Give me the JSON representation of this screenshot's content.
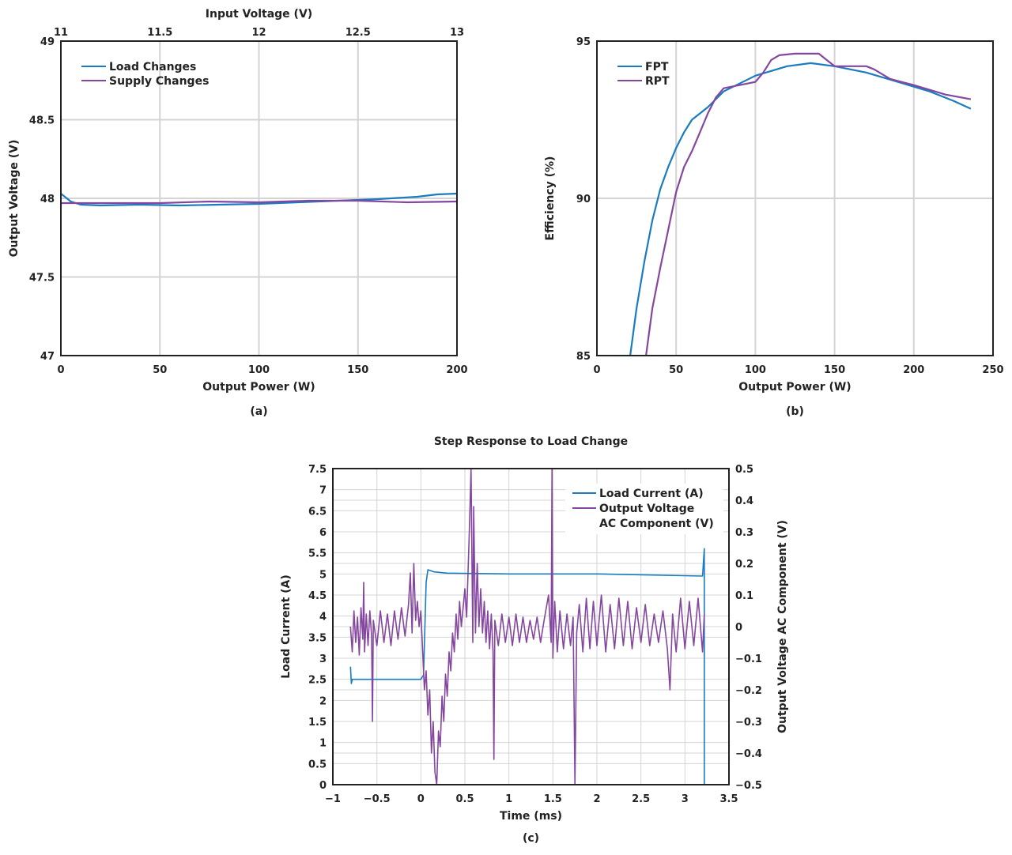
{
  "colors": {
    "blue": "#1a7cc0",
    "purple": "#8546a0",
    "grid": "#d4d4d4",
    "axis": "#222222"
  },
  "chart_data": [
    {
      "id": "a",
      "type": "line",
      "caption": "(a)",
      "xlabel": "Output Power (W)",
      "x2label": "Input Voltage (V)",
      "ylabel": "Output Voltage (V)",
      "xlim": [
        0,
        200
      ],
      "x2lim": [
        11,
        13
      ],
      "ylim": [
        47,
        49
      ],
      "xticks": [
        0,
        50,
        100,
        150,
        200
      ],
      "x2ticks": [
        11,
        11.5,
        12,
        12.5,
        13
      ],
      "yticks": [
        47,
        47.5,
        48,
        48.5,
        49
      ],
      "grid": true,
      "legend": "top-left",
      "series": [
        {
          "name": "Load Changes",
          "color": "blue",
          "axis": "x",
          "x": [
            0,
            5,
            10,
            20,
            40,
            60,
            80,
            100,
            120,
            140,
            160,
            180,
            190,
            200
          ],
          "y": [
            48.03,
            47.98,
            47.96,
            47.955,
            47.96,
            47.955,
            47.96,
            47.965,
            47.975,
            47.985,
            47.995,
            48.01,
            48.025,
            48.03
          ]
        },
        {
          "name": "Supply Changes",
          "color": "purple",
          "axis": "x2",
          "x": [
            11,
            11.5,
            11.75,
            12,
            12.25,
            12.5,
            12.75,
            13
          ],
          "y": [
            47.97,
            47.97,
            47.98,
            47.975,
            47.985,
            47.985,
            47.975,
            47.98
          ]
        }
      ]
    },
    {
      "id": "b",
      "type": "line",
      "caption": "(b)",
      "xlabel": "Output Power (W)",
      "ylabel": "Efficiency (%)",
      "xlim": [
        0,
        250
      ],
      "ylim": [
        85,
        95
      ],
      "xticks": [
        0,
        50,
        100,
        150,
        200,
        250
      ],
      "yticks": [
        85,
        90,
        95
      ],
      "grid": true,
      "legend": "top-left",
      "series": [
        {
          "name": "FPT",
          "color": "blue",
          "x": [
            21,
            25,
            30,
            35,
            40,
            45,
            50,
            55,
            60,
            70,
            80,
            100,
            120,
            135,
            150,
            170,
            190,
            210,
            225,
            236
          ],
          "y": [
            85,
            86.5,
            88,
            89.3,
            90.3,
            91.0,
            91.6,
            92.1,
            92.5,
            92.9,
            93.4,
            93.9,
            94.2,
            94.3,
            94.2,
            94.0,
            93.7,
            93.4,
            93.1,
            92.85
          ]
        },
        {
          "name": "RPT",
          "color": "purple",
          "x": [
            31,
            35,
            40,
            45,
            50,
            55,
            60,
            65,
            70,
            75,
            80,
            90,
            100,
            105,
            110,
            115,
            125,
            140,
            145,
            150,
            160,
            170,
            175,
            185,
            200,
            220,
            236
          ],
          "y": [
            85,
            86.5,
            87.8,
            89,
            90.2,
            91,
            91.5,
            92.1,
            92.7,
            93.2,
            93.5,
            93.6,
            93.7,
            94.0,
            94.4,
            94.55,
            94.6,
            94.6,
            94.4,
            94.2,
            94.2,
            94.2,
            94.1,
            93.8,
            93.6,
            93.3,
            93.15
          ]
        }
      ]
    },
    {
      "id": "c",
      "type": "line",
      "title": "Step Response to Load Change",
      "caption": "(c)",
      "xlabel": "Time (ms)",
      "ylabel": "Load Current (A)",
      "y2label": "Output Voltage AC Component (V)",
      "xlim": [
        -1,
        3.5
      ],
      "ylim": [
        0,
        7.5
      ],
      "y2lim": [
        -0.5,
        0.5
      ],
      "xticks": [
        -1,
        -0.5,
        0,
        0.5,
        1,
        1.5,
        2,
        2.5,
        3,
        3.5
      ],
      "yticks": [
        0,
        0.5,
        1,
        1.5,
        2,
        2.5,
        3,
        3.5,
        4,
        4.5,
        5,
        5.5,
        6,
        6.5,
        7,
        7.5
      ],
      "y2ticks": [
        -0.5,
        -0.4,
        -0.3,
        -0.2,
        -0.1,
        0,
        0.1,
        0.2,
        0.3,
        0.4,
        0.5
      ],
      "grid": true,
      "legend": "top-right",
      "series": [
        {
          "name": "Load Current (A)",
          "color": "blue",
          "axis": "y",
          "x": [
            -0.8,
            -0.79,
            -0.78,
            0.0,
            0.03,
            0.06,
            0.08,
            0.15,
            0.3,
            1.0,
            2.0,
            3.2,
            3.22,
            3.22
          ],
          "y": [
            2.8,
            2.4,
            2.5,
            2.5,
            2.6,
            4.8,
            5.1,
            5.05,
            5.02,
            5.0,
            5.0,
            4.95,
            5.6,
            0
          ]
        },
        {
          "name": "Output Voltage AC Component (V)",
          "legend_lines": [
            "Output Voltage",
            "AC Component (V)"
          ],
          "color": "purple",
          "axis": "y2",
          "x": [
            -0.8,
            -0.78,
            -0.76,
            -0.74,
            -0.72,
            -0.7,
            -0.68,
            -0.66,
            -0.65,
            -0.64,
            -0.62,
            -0.6,
            -0.58,
            -0.56,
            -0.55,
            -0.54,
            -0.5,
            -0.46,
            -0.42,
            -0.38,
            -0.34,
            -0.3,
            -0.26,
            -0.22,
            -0.18,
            -0.14,
            -0.12,
            -0.1,
            -0.08,
            -0.06,
            -0.04,
            -0.02,
            0.0,
            0.02,
            0.04,
            0.06,
            0.08,
            0.1,
            0.12,
            0.14,
            0.16,
            0.18,
            0.2,
            0.22,
            0.24,
            0.26,
            0.28,
            0.3,
            0.32,
            0.34,
            0.36,
            0.38,
            0.4,
            0.42,
            0.44,
            0.46,
            0.5,
            0.52,
            0.55,
            0.57,
            0.59,
            0.6,
            0.62,
            0.64,
            0.66,
            0.68,
            0.7,
            0.72,
            0.74,
            0.76,
            0.78,
            0.8,
            0.82,
            0.83,
            0.84,
            0.88,
            0.92,
            0.96,
            1.0,
            1.04,
            1.08,
            1.12,
            1.16,
            1.2,
            1.24,
            1.28,
            1.32,
            1.36,
            1.4,
            1.45,
            1.48,
            1.49,
            1.5,
            1.52,
            1.55,
            1.58,
            1.62,
            1.66,
            1.7,
            1.73,
            1.75,
            1.77,
            1.8,
            1.84,
            1.88,
            1.92,
            1.96,
            2.0,
            2.05,
            2.1,
            2.15,
            2.2,
            2.25,
            2.3,
            2.35,
            2.4,
            2.45,
            2.5,
            2.55,
            2.6,
            2.65,
            2.7,
            2.75,
            2.8,
            2.83,
            2.86,
            2.9,
            2.95,
            3.0,
            3.05,
            3.1,
            3.15,
            3.2,
            3.22
          ],
          "y": [
            0.0,
            -0.08,
            0.05,
            -0.05,
            0.03,
            -0.09,
            0.06,
            -0.04,
            0.14,
            -0.08,
            0.04,
            -0.06,
            0.05,
            -0.03,
            -0.3,
            0.02,
            -0.06,
            0.05,
            -0.05,
            0.04,
            -0.06,
            0.05,
            -0.04,
            0.06,
            -0.03,
            0.07,
            0.17,
            -0.02,
            0.2,
            0.02,
            0.08,
            0.0,
            0.05,
            -0.08,
            -0.2,
            -0.14,
            -0.28,
            -0.2,
            -0.4,
            -0.3,
            -0.46,
            -0.5,
            -0.33,
            -0.38,
            -0.22,
            -0.3,
            -0.15,
            -0.22,
            -0.08,
            -0.14,
            -0.02,
            -0.08,
            0.04,
            -0.04,
            0.08,
            0.0,
            0.12,
            0.03,
            0.3,
            0.5,
            -0.05,
            0.38,
            -0.02,
            0.2,
            0.0,
            0.12,
            -0.02,
            0.08,
            -0.05,
            0.05,
            -0.07,
            0.04,
            -0.08,
            -0.42,
            0.02,
            -0.06,
            0.04,
            -0.05,
            0.03,
            -0.06,
            0.04,
            -0.05,
            0.03,
            -0.05,
            0.02,
            -0.04,
            0.03,
            -0.05,
            0.02,
            0.1,
            -0.05,
            0.5,
            -0.1,
            0.08,
            -0.08,
            0.05,
            -0.07,
            0.04,
            -0.06,
            0.03,
            -0.5,
            -0.02,
            0.07,
            -0.08,
            0.09,
            -0.07,
            0.08,
            -0.06,
            0.1,
            -0.08,
            0.07,
            -0.07,
            0.09,
            -0.06,
            0.08,
            -0.07,
            0.06,
            -0.05,
            0.07,
            -0.06,
            0.04,
            -0.05,
            0.05,
            -0.07,
            -0.2,
            0.04,
            -0.08,
            0.09,
            -0.07,
            0.08,
            -0.06,
            0.09,
            -0.08,
            0.04
          ]
        }
      ]
    }
  ]
}
